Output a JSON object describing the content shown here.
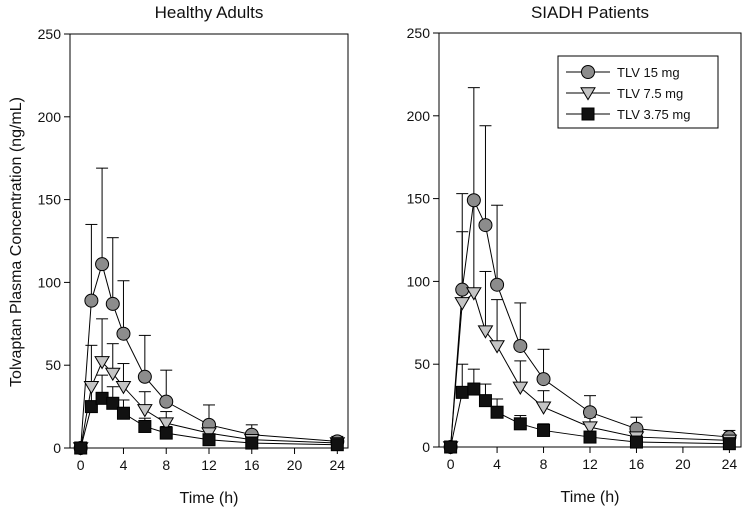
{
  "chart_data": {
    "type": "line",
    "ylabel": "Tolvaptan Plasma Concentration (ng/mL)",
    "legend": {
      "placement": "top-right of right panel",
      "entries": [
        {
          "label": "TLV  15 mg",
          "marker": "circle",
          "fill": "#8c8c8c"
        },
        {
          "label": "TLV  7.5 mg",
          "marker": "triangle-down",
          "fill": "#c4c4c4"
        },
        {
          "label": "TLV  3.75 mg",
          "marker": "square",
          "fill": "#111111"
        }
      ]
    },
    "panels": [
      {
        "title": "Healthy Adults",
        "xlabel": "Time (h)",
        "xlim": [
          -1,
          25
        ],
        "ylim": [
          0,
          250
        ],
        "xticks": [
          0,
          4,
          8,
          12,
          16,
          20,
          24
        ],
        "yticks": [
          0,
          50,
          100,
          150,
          200,
          250
        ],
        "x": [
          0,
          1,
          2,
          3,
          4,
          6,
          8,
          12,
          16,
          24
        ],
        "series": [
          {
            "name": "TLV 15 mg",
            "values": [
              0,
              89,
              111,
              87,
              69,
              43,
              28,
              14,
              8,
              4
            ],
            "error": [
              0,
              46,
              58,
              40,
              32,
              25,
              19,
              12,
              6,
              3
            ]
          },
          {
            "name": "TLV 7.5 mg",
            "values": [
              0,
              37,
              52,
              45,
              37,
              23,
              15,
              9,
              5,
              3
            ],
            "error": [
              0,
              25,
              26,
              18,
              14,
              11,
              7,
              5,
              3,
              2
            ]
          },
          {
            "name": "TLV 3.75 mg",
            "values": [
              0,
              25,
              30,
              27,
              21,
              13,
              9,
              5,
              3,
              2
            ],
            "error": [
              0,
              14,
              14,
              10,
              8,
              5,
              4,
              3,
              2,
              1
            ]
          }
        ]
      },
      {
        "title": "SIADH Patients",
        "xlabel": "Time (h)",
        "xlim": [
          -1,
          25
        ],
        "ylim": [
          0,
          250
        ],
        "xticks": [
          0,
          4,
          8,
          12,
          16,
          20,
          24
        ],
        "yticks": [
          0,
          50,
          100,
          150,
          200,
          250
        ],
        "x": [
          0,
          1,
          2,
          3,
          4,
          6,
          8,
          12,
          16,
          24
        ],
        "series": [
          {
            "name": "TLV 15 mg",
            "values": [
              0,
              95,
              149,
              134,
              98,
              61,
              41,
              21,
              11,
              6
            ],
            "error": [
              0,
              58,
              68,
              60,
              48,
              26,
              18,
              10,
              7,
              4
            ]
          },
          {
            "name": "TLV 7.5 mg",
            "values": [
              0,
              87,
              93,
              70,
              61,
              36,
              24,
              12,
              6,
              4
            ],
            "error": [
              0,
              43,
              58,
              36,
              28,
              16,
              10,
              6,
              4,
              2
            ]
          },
          {
            "name": "TLV 3.75 mg",
            "values": [
              0,
              33,
              35,
              28,
              21,
              14,
              10,
              6,
              3,
              2
            ],
            "error": [
              0,
              17,
              12,
              10,
              8,
              5,
              4,
              3,
              2,
              1
            ]
          }
        ]
      }
    ]
  }
}
